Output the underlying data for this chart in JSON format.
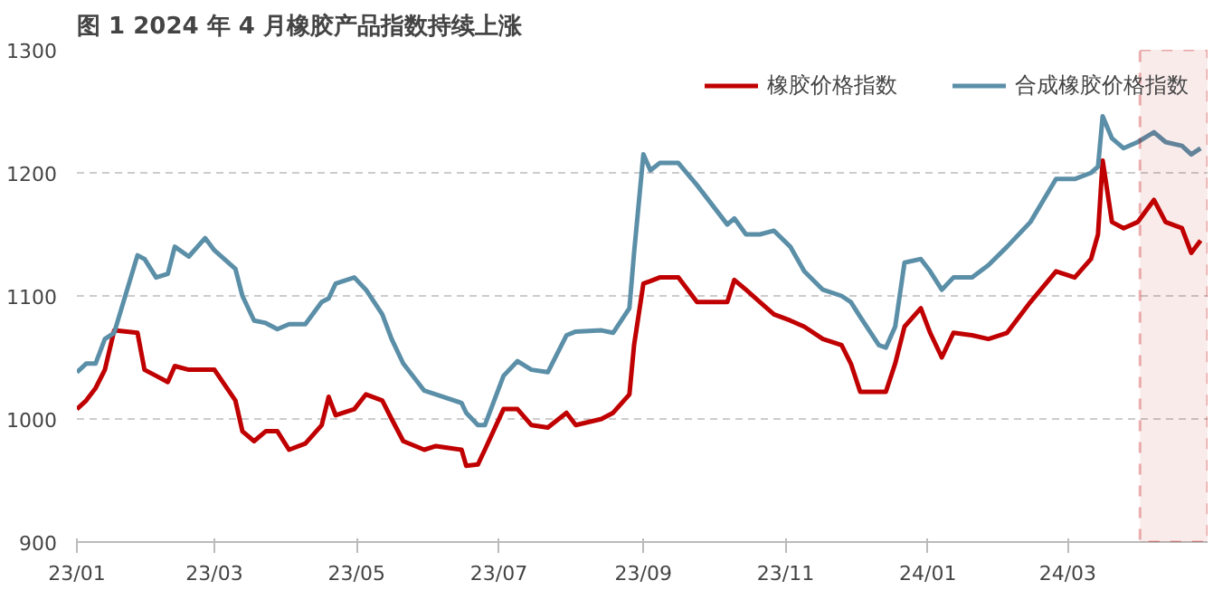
{
  "chart_data": {
    "type": "line",
    "title": "图 1 2024 年 4 月橡胶产品指数持续上涨",
    "x": [
      "2023-01-01",
      "2023-01-05",
      "2023-01-09",
      "2023-01-13",
      "2023-01-17",
      "2023-01-27",
      "2023-01-30",
      "2023-02-04",
      "2023-02-09",
      "2023-02-12",
      "2023-02-18",
      "2023-02-25",
      "2023-03-01",
      "2023-03-10",
      "2023-03-13",
      "2023-03-18",
      "2023-03-23",
      "2023-03-28",
      "2023-04-02",
      "2023-04-09",
      "2023-04-16",
      "2023-04-19",
      "2023-04-22",
      "2023-04-30",
      "2023-05-05",
      "2023-05-12",
      "2023-05-16",
      "2023-05-21",
      "2023-05-30",
      "2023-06-04",
      "2023-06-15",
      "2023-06-17",
      "2023-06-22",
      "2023-06-25",
      "2023-07-03",
      "2023-07-09",
      "2023-07-15",
      "2023-07-22",
      "2023-07-30",
      "2023-08-03",
      "2023-08-14",
      "2023-08-19",
      "2023-08-26",
      "2023-08-28",
      "2023-09-01",
      "2023-09-04",
      "2023-09-08",
      "2023-09-16",
      "2023-09-24",
      "2023-10-07",
      "2023-10-10",
      "2023-10-15",
      "2023-10-21",
      "2023-10-27",
      "2023-11-03",
      "2023-11-09",
      "2023-11-17",
      "2023-11-25",
      "2023-11-29",
      "2023-12-03",
      "2023-12-11",
      "2023-12-14",
      "2023-12-18",
      "2023-12-22",
      "2023-12-29",
      "2024-01-02",
      "2024-01-07",
      "2024-01-12",
      "2024-01-20",
      "2024-01-27",
      "2024-02-04",
      "2024-02-14",
      "2024-02-25",
      "2024-03-04",
      "2024-03-11",
      "2024-03-14",
      "2024-03-16",
      "2024-03-20",
      "2024-03-25",
      "2024-03-31",
      "2024-04-07",
      "2024-04-12",
      "2024-04-19",
      "2024-04-23",
      "2024-04-27"
    ],
    "series": [
      {
        "name": "橡胶价格指数",
        "color": "#c00000",
        "values": [
          1008,
          1015,
          1025,
          1040,
          1072,
          1070,
          1040,
          1035,
          1030,
          1043,
          1040,
          1040,
          1040,
          1015,
          990,
          982,
          990,
          990,
          975,
          980,
          995,
          1018,
          1003,
          1008,
          1020,
          1015,
          1000,
          982,
          975,
          978,
          975,
          962,
          963,
          975,
          1008,
          1008,
          995,
          993,
          1005,
          995,
          1000,
          1005,
          1020,
          1060,
          1110,
          1112,
          1115,
          1115,
          1095,
          1095,
          1113,
          1105,
          1095,
          1085,
          1080,
          1075,
          1065,
          1060,
          1045,
          1022,
          1022,
          1022,
          1045,
          1075,
          1090,
          1070,
          1050,
          1070,
          1068,
          1065,
          1070,
          1095,
          1120,
          1115,
          1130,
          1150,
          1210,
          1160,
          1155,
          1160,
          1178,
          1160,
          1155,
          1135,
          1145
        ]
      },
      {
        "name": "合成橡胶价格指数",
        "color": "#5b8fa8",
        "values": [
          1038,
          1045,
          1045,
          1065,
          1070,
          1133,
          1130,
          1115,
          1118,
          1140,
          1132,
          1147,
          1137,
          1122,
          1100,
          1080,
          1078,
          1073,
          1077,
          1077,
          1095,
          1098,
          1110,
          1115,
          1105,
          1085,
          1065,
          1045,
          1023,
          1020,
          1013,
          1005,
          995,
          995,
          1035,
          1047,
          1040,
          1038,
          1068,
          1071,
          1072,
          1070,
          1090,
          1135,
          1215,
          1202,
          1208,
          1208,
          1190,
          1158,
          1163,
          1150,
          1150,
          1153,
          1140,
          1120,
          1105,
          1100,
          1095,
          1083,
          1060,
          1058,
          1075,
          1127,
          1130,
          1120,
          1105,
          1115,
          1115,
          1125,
          1140,
          1160,
          1195,
          1195,
          1200,
          1205,
          1246,
          1228,
          1220,
          1225,
          1233,
          1225,
          1222,
          1215,
          1220
        ]
      }
    ],
    "xlim": [
      "2023-01-01",
      "2024-04-30"
    ],
    "xticks": [
      {
        "value": "2023-01-01",
        "label": "23/01"
      },
      {
        "value": "2023-03-01",
        "label": "23/03"
      },
      {
        "value": "2023-05-01",
        "label": "23/05"
      },
      {
        "value": "2023-07-01",
        "label": "23/07"
      },
      {
        "value": "2023-09-01",
        "label": "23/09"
      },
      {
        "value": "2023-11-01",
        "label": "23/11"
      },
      {
        "value": "2024-01-01",
        "label": "24/01"
      },
      {
        "value": "2024-03-01",
        "label": "24/03"
      }
    ],
    "ylim": [
      900,
      1300
    ],
    "yticks": [
      900,
      1000,
      1100,
      1200,
      1300
    ],
    "bands": [
      {
        "axis": "x",
        "from": "2024-04-01",
        "to": "2024-04-30",
        "color": "#c00000"
      }
    ],
    "grid": "y",
    "legend": "top right",
    "marker": "none",
    "line_style": "solid"
  }
}
